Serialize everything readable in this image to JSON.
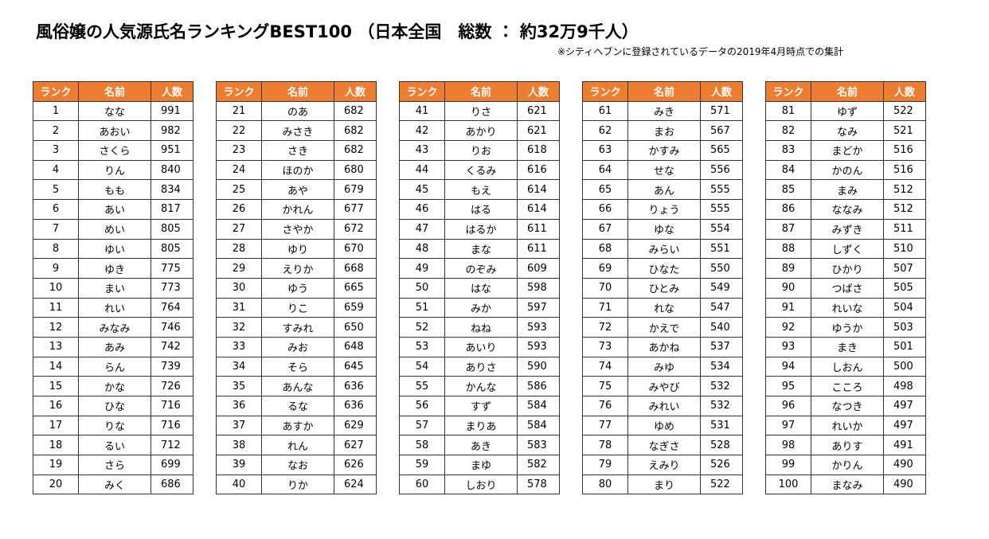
{
  "title": "風俗嬢の人気源氏名ランキングBEST100 （日本全国　総数 ： 約32万9千人）",
  "note": "※シティヘブンに登録されているデータの2019年4月時点での集計",
  "header": [
    "ランク",
    "名前",
    "人数"
  ],
  "tables": [
    {
      "rows": [
        [
          1,
          "なな",
          991
        ],
        [
          2,
          "あおい",
          982
        ],
        [
          3,
          "さくら",
          951
        ],
        [
          4,
          "りん",
          840
        ],
        [
          5,
          "もも",
          834
        ],
        [
          6,
          "あい",
          817
        ],
        [
          7,
          "めい",
          805
        ],
        [
          8,
          "ゆい",
          805
        ],
        [
          9,
          "ゆき",
          775
        ],
        [
          10,
          "まい",
          773
        ],
        [
          11,
          "れい",
          764
        ],
        [
          12,
          "みなみ",
          746
        ],
        [
          13,
          "あみ",
          742
        ],
        [
          14,
          "らん",
          739
        ],
        [
          15,
          "かな",
          726
        ],
        [
          16,
          "ひな",
          716
        ],
        [
          17,
          "りな",
          716
        ],
        [
          18,
          "るい",
          712
        ],
        [
          19,
          "さら",
          699
        ],
        [
          20,
          "みく",
          686
        ]
      ]
    },
    {
      "rows": [
        [
          21,
          "のあ",
          682
        ],
        [
          22,
          "みさき",
          682
        ],
        [
          23,
          "さき",
          682
        ],
        [
          24,
          "ほのか",
          680
        ],
        [
          25,
          "あや",
          679
        ],
        [
          26,
          "かれん",
          677
        ],
        [
          27,
          "さやか",
          672
        ],
        [
          28,
          "ゆり",
          670
        ],
        [
          29,
          "えりか",
          668
        ],
        [
          30,
          "ゆう",
          665
        ],
        [
          31,
          "りこ",
          659
        ],
        [
          32,
          "すみれ",
          650
        ],
        [
          33,
          "みお",
          648
        ],
        [
          34,
          "そら",
          645
        ],
        [
          35,
          "あんな",
          636
        ],
        [
          36,
          "るな",
          636
        ],
        [
          37,
          "あすか",
          629
        ],
        [
          38,
          "れん",
          627
        ],
        [
          39,
          "なお",
          626
        ],
        [
          40,
          "りか",
          624
        ]
      ]
    },
    {
      "rows": [
        [
          41,
          "りさ",
          621
        ],
        [
          42,
          "あかり",
          621
        ],
        [
          43,
          "りお",
          618
        ],
        [
          44,
          "くるみ",
          616
        ],
        [
          45,
          "もえ",
          614
        ],
        [
          46,
          "はる",
          614
        ],
        [
          47,
          "はるか",
          611
        ],
        [
          48,
          "まな",
          611
        ],
        [
          49,
          "のぞみ",
          609
        ],
        [
          50,
          "はな",
          598
        ],
        [
          51,
          "みか",
          597
        ],
        [
          52,
          "ねね",
          593
        ],
        [
          53,
          "あいり",
          593
        ],
        [
          54,
          "ありさ",
          590
        ],
        [
          55,
          "かんな",
          586
        ],
        [
          56,
          "すず",
          584
        ],
        [
          57,
          "まりあ",
          584
        ],
        [
          58,
          "あき",
          583
        ],
        [
          59,
          "まゆ",
          582
        ],
        [
          60,
          "しおり",
          578
        ]
      ]
    },
    {
      "rows": [
        [
          61,
          "みき",
          571
        ],
        [
          62,
          "まお",
          567
        ],
        [
          63,
          "かすみ",
          565
        ],
        [
          64,
          "せな",
          556
        ],
        [
          65,
          "あん",
          555
        ],
        [
          66,
          "りょう",
          555
        ],
        [
          67,
          "ゆな",
          554
        ],
        [
          68,
          "みらい",
          551
        ],
        [
          69,
          "ひなた",
          550
        ],
        [
          70,
          "ひとみ",
          549
        ],
        [
          71,
          "れな",
          547
        ],
        [
          72,
          "かえで",
          540
        ],
        [
          73,
          "あかね",
          537
        ],
        [
          74,
          "みゆ",
          534
        ],
        [
          75,
          "みやび",
          532
        ],
        [
          76,
          "みれい",
          532
        ],
        [
          77,
          "ゆめ",
          531
        ],
        [
          78,
          "なぎさ",
          528
        ],
        [
          79,
          "えみり",
          526
        ],
        [
          80,
          "まり",
          522
        ]
      ]
    },
    {
      "rows": [
        [
          81,
          "ゆず",
          522
        ],
        [
          82,
          "なみ",
          521
        ],
        [
          83,
          "まどか",
          516
        ],
        [
          84,
          "かのん",
          516
        ],
        [
          85,
          "まみ",
          512
        ],
        [
          86,
          "ななみ",
          512
        ],
        [
          87,
          "みずき",
          511
        ],
        [
          88,
          "しずく",
          510
        ],
        [
          89,
          "ひかり",
          507
        ],
        [
          90,
          "つばさ",
          505
        ],
        [
          91,
          "れいな",
          504
        ],
        [
          92,
          "ゆうか",
          503
        ],
        [
          93,
          "まき",
          501
        ],
        [
          94,
          "しおん",
          500
        ],
        [
          95,
          "こころ",
          498
        ],
        [
          96,
          "なつき",
          497
        ],
        [
          97,
          "れいか",
          497
        ],
        [
          98,
          "ありす",
          491
        ],
        [
          99,
          "かりん",
          490
        ],
        [
          100,
          "まなみ",
          490
        ]
      ]
    }
  ]
}
